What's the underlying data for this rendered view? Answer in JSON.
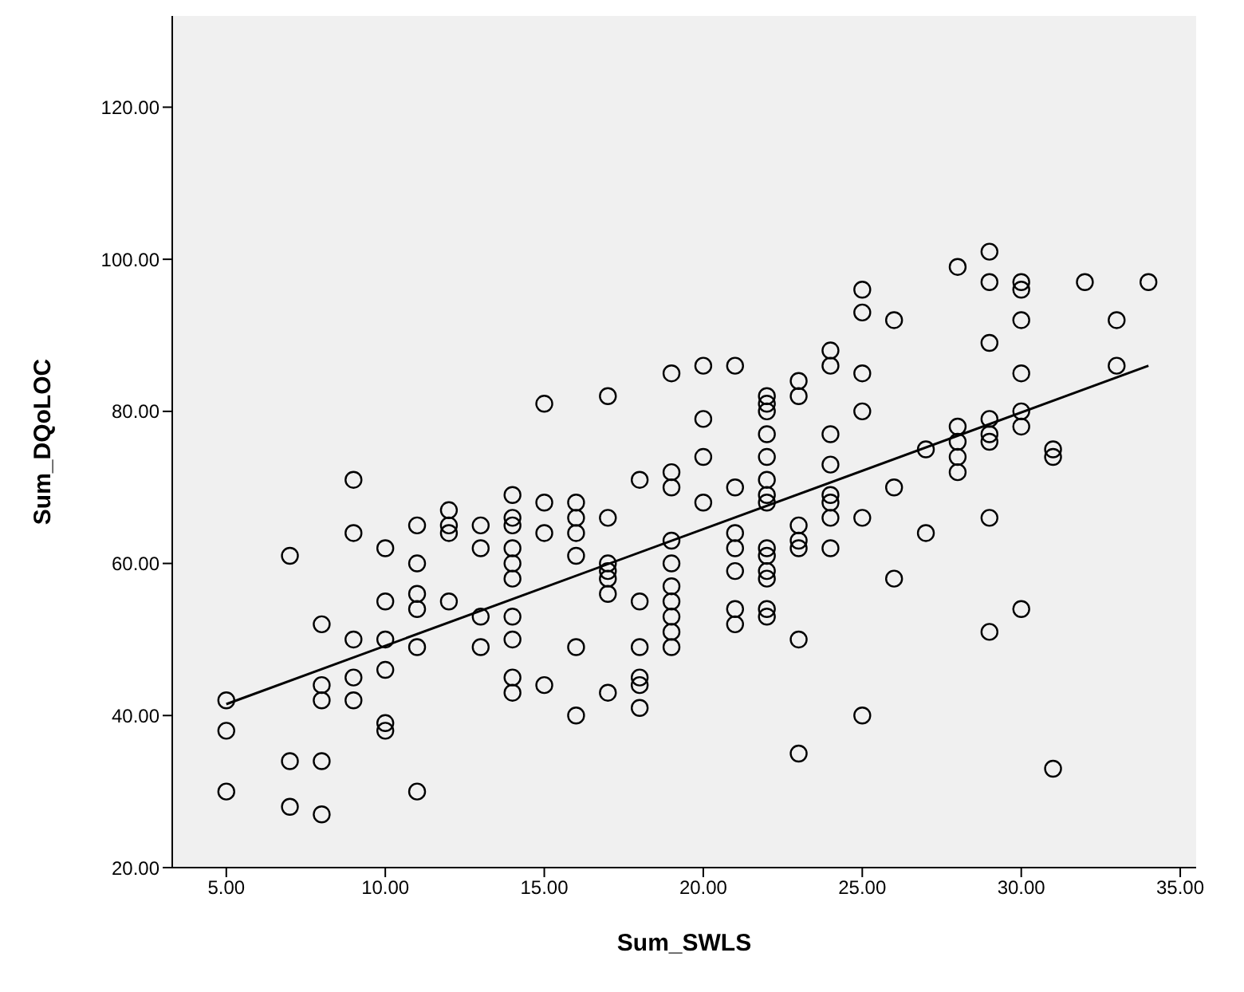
{
  "chart_data": {
    "type": "scatter",
    "xlabel": "Sum_SWLS",
    "ylabel": "Sum_DQoLOC",
    "xlim": [
      3.3,
      35.5
    ],
    "ylim": [
      20,
      132
    ],
    "xticks": [
      {
        "value": 5,
        "label": "5.00"
      },
      {
        "value": 10,
        "label": "10.00"
      },
      {
        "value": 15,
        "label": "15.00"
      },
      {
        "value": 20,
        "label": "20.00"
      },
      {
        "value": 25,
        "label": "25.00"
      },
      {
        "value": 30,
        "label": "30.00"
      },
      {
        "value": 35,
        "label": "35.00"
      }
    ],
    "yticks": [
      {
        "value": 20,
        "label": "20.00"
      },
      {
        "value": 40,
        "label": "40.00"
      },
      {
        "value": 60,
        "label": "60.00"
      },
      {
        "value": 80,
        "label": "80.00"
      },
      {
        "value": 100,
        "label": "100.00"
      },
      {
        "value": 120,
        "label": "120.00"
      }
    ],
    "marker": "circle",
    "grid": false,
    "legend": false,
    "series": [
      {
        "color": "#000000",
        "x": [
          5,
          5,
          5,
          7,
          7,
          7,
          8,
          8,
          8,
          8,
          8,
          9,
          9,
          9,
          9,
          9,
          10,
          10,
          10,
          10,
          10,
          10,
          11,
          11,
          11,
          11,
          11,
          11,
          12,
          12,
          12,
          12,
          13,
          13,
          13,
          13,
          14,
          14,
          14,
          14,
          14,
          14,
          14,
          14,
          14,
          14,
          15,
          15,
          15,
          15,
          16,
          16,
          16,
          16,
          16,
          16,
          17,
          17,
          17,
          17,
          17,
          17,
          17,
          18,
          18,
          18,
          18,
          18,
          18,
          19,
          19,
          19,
          19,
          19,
          19,
          19,
          19,
          19,
          19,
          20,
          20,
          20,
          20,
          21,
          21,
          21,
          21,
          21,
          21,
          21,
          22,
          22,
          22,
          22,
          22,
          22,
          22,
          22,
          22,
          22,
          22,
          22,
          22,
          22,
          23,
          23,
          23,
          23,
          23,
          23,
          23,
          24,
          24,
          24,
          24,
          24,
          24,
          24,
          24,
          25,
          25,
          25,
          25,
          25,
          25,
          26,
          26,
          26,
          27,
          27,
          28,
          28,
          28,
          28,
          28,
          29,
          29,
          29,
          29,
          29,
          29,
          29,
          29,
          30,
          30,
          30,
          30,
          30,
          30,
          30,
          31,
          31,
          31,
          32,
          33,
          33,
          34
        ],
        "values": [
          42,
          38,
          30,
          61,
          34,
          28,
          52,
          44,
          42,
          34,
          27,
          71,
          64,
          50,
          45,
          42,
          62,
          55,
          50,
          46,
          39,
          38,
          65,
          60,
          56,
          54,
          49,
          30,
          67,
          65,
          64,
          55,
          65,
          62,
          53,
          49,
          69,
          66,
          65,
          62,
          60,
          58,
          53,
          50,
          45,
          43,
          81,
          68,
          64,
          44,
          68,
          66,
          64,
          61,
          49,
          40,
          82,
          66,
          60,
          59,
          58,
          56,
          43,
          71,
          55,
          49,
          45,
          44,
          41,
          85,
          72,
          70,
          63,
          60,
          57,
          55,
          53,
          51,
          49,
          86,
          79,
          74,
          68,
          86,
          70,
          64,
          62,
          59,
          54,
          52,
          82,
          81,
          80,
          77,
          74,
          71,
          69,
          68,
          62,
          61,
          59,
          58,
          54,
          53,
          84,
          82,
          65,
          63,
          62,
          50,
          35,
          88,
          86,
          77,
          73,
          69,
          68,
          66,
          62,
          96,
          93,
          85,
          80,
          66,
          40,
          92,
          70,
          58,
          75,
          64,
          99,
          78,
          76,
          74,
          72,
          101,
          97,
          89,
          79,
          77,
          76,
          66,
          51,
          97,
          96,
          92,
          85,
          80,
          78,
          54,
          75,
          74,
          33,
          97,
          92,
          86,
          97
        ]
      },
      {
        "type": "line",
        "color": "#000000",
        "x": [
          5,
          34
        ],
        "values": [
          41.5,
          86
        ],
        "marker": "none"
      }
    ]
  }
}
